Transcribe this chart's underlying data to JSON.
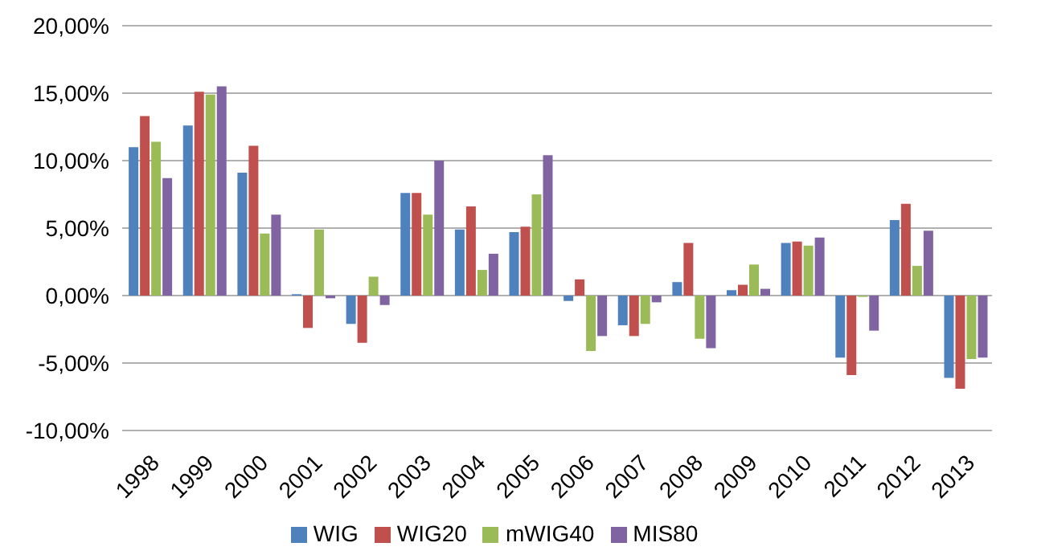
{
  "chart_data": {
    "type": "bar",
    "categories": [
      "1998",
      "1999",
      "2000",
      "2001",
      "2002",
      "2003",
      "2004",
      "2005",
      "2006",
      "2007",
      "2008",
      "2009",
      "2010",
      "2011",
      "2012",
      "2013"
    ],
    "series": [
      {
        "name": "WIG",
        "color": "#4f81bd",
        "values": [
          11,
          12.6,
          9.1,
          0.1,
          -2.1,
          7.6,
          4.9,
          4.7,
          -0.4,
          -2.2,
          1.0,
          0.4,
          3.9,
          -4.6,
          5.6,
          -6.1
        ]
      },
      {
        "name": "WIG20",
        "color": "#c0504d",
        "values": [
          13.3,
          15.1,
          11.1,
          -2.4,
          -3.5,
          7.6,
          6.6,
          5.1,
          1.2,
          -3.0,
          3.9,
          0.8,
          4.0,
          -5.9,
          6.8,
          -6.9
        ]
      },
      {
        "name": "mWIG40",
        "color": "#9bbb59",
        "values": [
          11.4,
          14.9,
          4.6,
          4.9,
          1.4,
          6.0,
          1.9,
          7.5,
          -4.1,
          -2.1,
          -3.2,
          2.3,
          3.7,
          -0.1,
          2.2,
          -4.7
        ]
      },
      {
        "name": "MIS80",
        "color": "#8064a2",
        "values": [
          8.7,
          15.5,
          6.0,
          -0.2,
          -0.7,
          10.0,
          3.1,
          10.4,
          -3.0,
          -0.5,
          -3.9,
          0.5,
          4.3,
          -2.6,
          4.8,
          -4.6
        ]
      }
    ],
    "ylim": [
      -10,
      20
    ],
    "yticks": [
      {
        "value": -10,
        "label": "-10,00%"
      },
      {
        "value": -5,
        "label": "-5,00%"
      },
      {
        "value": 0,
        "label": "0,00%"
      },
      {
        "value": 5,
        "label": "5,00%"
      },
      {
        "value": 10,
        "label": "10,00%"
      },
      {
        "value": 15,
        "label": "15,00%"
      },
      {
        "value": 20,
        "label": "20,00%"
      }
    ],
    "grid": "y",
    "legend": "bottom"
  }
}
